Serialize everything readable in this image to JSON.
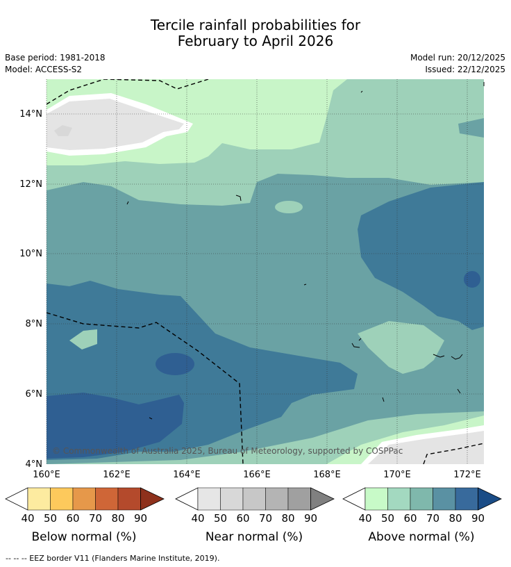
{
  "title_line1": "Tercile rainfall probabilities for",
  "title_line2": "February to April 2026",
  "base_period": "Base period: 1981-2018",
  "model": "Model: ACCESS-S2",
  "model_run": "Model run: 20/12/2025",
  "issued": "Issued: 22/12/2025",
  "map": {
    "lat_labels": [
      "14°N",
      "12°N",
      "10°N",
      "8°N",
      "6°N",
      "4°N"
    ],
    "lon_labels": [
      "160°E",
      "162°E",
      "164°E",
      "166°E",
      "168°E",
      "170°E",
      "172°E"
    ],
    "copyright": "© Commonwealth of Australia 2025, Bureau of Meteorology, supported by COSPPac",
    "colors": {
      "above_50": "#c8f5c8",
      "above_60": "#9ed1b9",
      "above_70": "#6aa2a4",
      "above_80": "#3f7a98",
      "above_90": "#2f5f92",
      "near_50": "#e4e4e4"
    }
  },
  "colorbars": [
    {
      "name": "below",
      "title": "Below normal (%)",
      "ticks": [
        "40",
        "50",
        "60",
        "70",
        "80",
        "90"
      ],
      "colors": [
        "#fdeba0",
        "#fdc95c",
        "#e6984a",
        "#cf6637",
        "#b44a2c",
        "#8e311c"
      ]
    },
    {
      "name": "near",
      "title": "Near normal (%)",
      "ticks": [
        "40",
        "50",
        "60",
        "70",
        "80",
        "90"
      ],
      "colors": [
        "#e6e6e6",
        "#d8d8d8",
        "#c7c7c7",
        "#b4b4b4",
        "#a0a0a0",
        "#808080"
      ]
    },
    {
      "name": "above",
      "title": "Above normal (%)",
      "ticks": [
        "40",
        "50",
        "60",
        "70",
        "80",
        "90"
      ],
      "colors": [
        "#c8fac8",
        "#a3d9c0",
        "#7fb8ac",
        "#5a91a3",
        "#386a9c",
        "#1a4c86"
      ]
    }
  ],
  "footnote": "-- -- -- EEZ border V11 (Flanders Marine Institute, 2019)."
}
